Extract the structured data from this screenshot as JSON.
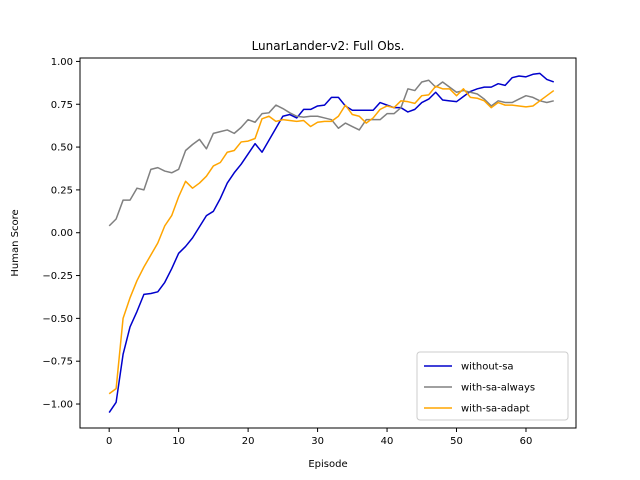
{
  "chart_data": {
    "type": "line",
    "title": "LunarLander-v2: Full Obs.",
    "xlabel": "Episode",
    "ylabel": "Human Score",
    "xlim": [
      -4.2,
      67.2
    ],
    "ylim": [
      -1.14,
      1.02
    ],
    "xticks": [
      0,
      10,
      20,
      30,
      40,
      50,
      60
    ],
    "xtick_labels": [
      "0",
      "10",
      "20",
      "30",
      "40",
      "50",
      "60"
    ],
    "yticks": [
      -1.0,
      -0.75,
      -0.5,
      -0.25,
      0.0,
      0.25,
      0.5,
      0.75,
      1.0
    ],
    "ytick_labels": [
      "−1.00",
      "−0.75",
      "−0.50",
      "−0.25",
      "0.00",
      "0.25",
      "0.50",
      "0.75",
      "1.00"
    ],
    "grid": false,
    "legend_position": "lower-right",
    "x": [
      0,
      1,
      2,
      3,
      4,
      5,
      6,
      7,
      8,
      9,
      10,
      11,
      12,
      13,
      14,
      15,
      16,
      17,
      18,
      19,
      20,
      21,
      22,
      23,
      24,
      25,
      26,
      27,
      28,
      29,
      30,
      31,
      32,
      33,
      34,
      35,
      36,
      37,
      38,
      39,
      40,
      41,
      42,
      43,
      44,
      45,
      46,
      47,
      48,
      49,
      50,
      51,
      52,
      53,
      54,
      55,
      56,
      57,
      58,
      59,
      60,
      61,
      62,
      63,
      64
    ],
    "series": [
      {
        "name": "without-sa",
        "color": "#0000cc",
        "values": [
          -1.05,
          -0.99,
          -0.71,
          -0.55,
          -0.46,
          -0.36,
          -0.355,
          -0.345,
          -0.29,
          -0.21,
          -0.12,
          -0.08,
          -0.03,
          0.035,
          0.1,
          0.125,
          0.2,
          0.29,
          0.35,
          0.4,
          0.46,
          0.52,
          0.47,
          0.54,
          0.61,
          0.68,
          0.69,
          0.67,
          0.72,
          0.72,
          0.74,
          0.745,
          0.79,
          0.79,
          0.74,
          0.715,
          0.715,
          0.715,
          0.715,
          0.76,
          0.745,
          0.73,
          0.73,
          0.705,
          0.72,
          0.76,
          0.78,
          0.82,
          0.775,
          0.77,
          0.765,
          0.795,
          0.825,
          0.84,
          0.85,
          0.85,
          0.87,
          0.86,
          0.905,
          0.915,
          0.91,
          0.925,
          0.93,
          0.895,
          0.88
        ]
      },
      {
        "name": "with-sa-always",
        "color": "#808080",
        "values": [
          0.04,
          0.08,
          0.19,
          0.19,
          0.26,
          0.25,
          0.37,
          0.38,
          0.36,
          0.35,
          0.37,
          0.48,
          0.515,
          0.545,
          0.49,
          0.58,
          0.59,
          0.6,
          0.58,
          0.615,
          0.66,
          0.645,
          0.695,
          0.7,
          0.745,
          0.725,
          0.7,
          0.68,
          0.675,
          0.68,
          0.68,
          0.67,
          0.66,
          0.61,
          0.64,
          0.62,
          0.6,
          0.66,
          0.66,
          0.66,
          0.695,
          0.695,
          0.73,
          0.84,
          0.83,
          0.88,
          0.89,
          0.85,
          0.88,
          0.85,
          0.82,
          0.83,
          0.82,
          0.81,
          0.78,
          0.74,
          0.77,
          0.76,
          0.76,
          0.78,
          0.8,
          0.79,
          0.77,
          0.76,
          0.77
        ]
      },
      {
        "name": "with-sa-adapt",
        "color": "#ffa500",
        "values": [
          -0.94,
          -0.91,
          -0.5,
          -0.38,
          -0.28,
          -0.2,
          -0.13,
          -0.06,
          0.04,
          0.1,
          0.21,
          0.3,
          0.26,
          0.29,
          0.33,
          0.39,
          0.41,
          0.47,
          0.48,
          0.53,
          0.535,
          0.55,
          0.665,
          0.68,
          0.65,
          0.66,
          0.655,
          0.65,
          0.655,
          0.62,
          0.645,
          0.65,
          0.65,
          0.68,
          0.745,
          0.69,
          0.68,
          0.64,
          0.67,
          0.72,
          0.74,
          0.73,
          0.77,
          0.765,
          0.755,
          0.8,
          0.805,
          0.855,
          0.84,
          0.84,
          0.8,
          0.84,
          0.79,
          0.785,
          0.77,
          0.73,
          0.76,
          0.745,
          0.745,
          0.74,
          0.735,
          0.74,
          0.77,
          0.8,
          0.83
        ]
      }
    ]
  }
}
